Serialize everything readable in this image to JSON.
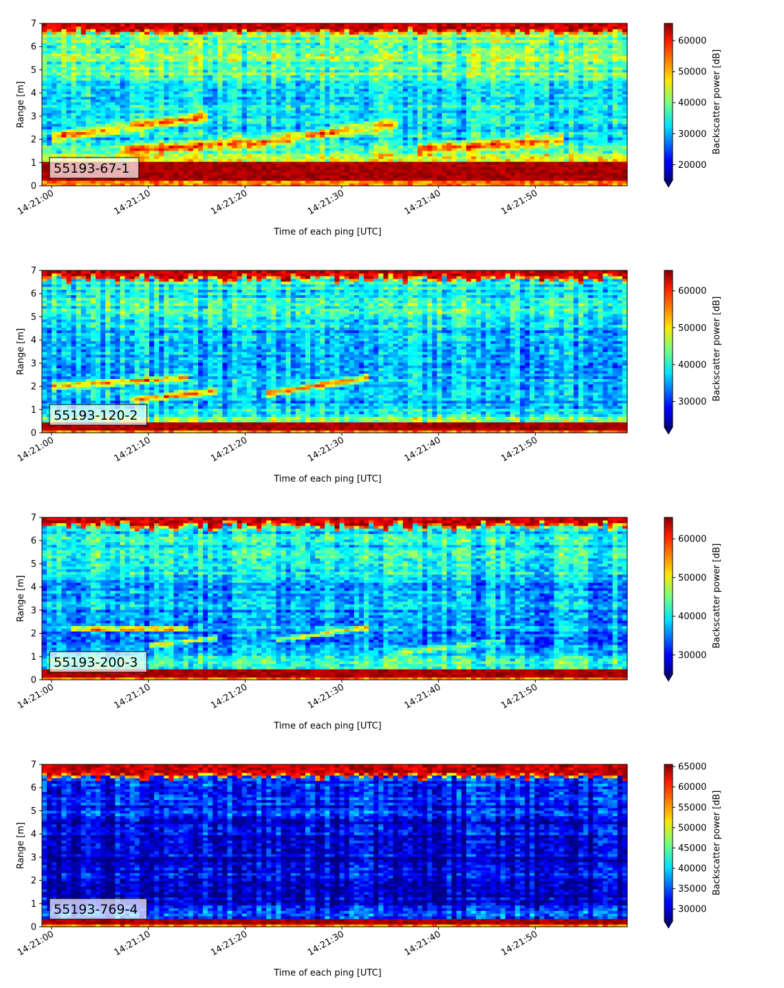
{
  "chart_data": [
    {
      "type": "heatmap",
      "label": "55193-67-1",
      "xlabel": "Time of each ping [UTC]",
      "ylabel": "Range [m]",
      "x_tick_labels": [
        "14:21:00",
        "14:21:10",
        "14:21:20",
        "14:21:30",
        "14:21:40",
        "14:21:50"
      ],
      "x_range_seconds": [
        -1,
        59.5
      ],
      "ylim": [
        0,
        7
      ],
      "y_ticks": [
        0,
        1,
        2,
        3,
        4,
        5,
        6,
        7
      ],
      "colorbar": {
        "label": "Backscatter power [dB]",
        "ticks": [
          20000,
          30000,
          40000,
          50000,
          60000
        ],
        "range": [
          15000,
          65535
        ],
        "cmap": "jet",
        "extend": "min"
      },
      "features": {
        "surface_top": 6.6,
        "surface_var": 0.12,
        "bottom_band": [
          0.2,
          1.1
        ],
        "background": 0.35,
        "upper_noise": 0.15,
        "tracks": [
          {
            "t0": 0,
            "t1": 16,
            "r0": 2.1,
            "r1": 3.0,
            "intensity": 0.35,
            "width": 0.3
          },
          {
            "t0": 7,
            "t1": 20,
            "r0": 1.5,
            "r1": 1.9,
            "intensity": 0.35,
            "width": 0.3
          },
          {
            "t0": 20,
            "t1": 36,
            "r0": 1.8,
            "r1": 2.7,
            "intensity": 0.35,
            "width": 0.3
          },
          {
            "t0": 38,
            "t1": 53,
            "r0": 1.6,
            "r1": 2.0,
            "intensity": 0.35,
            "width": 0.3
          }
        ],
        "lower_glow": 0.3
      }
    },
    {
      "type": "heatmap",
      "label": "55193-120-2",
      "xlabel": "Time of each ping [UTC]",
      "ylabel": "Range [m]",
      "x_tick_labels": [
        "14:21:00",
        "14:21:10",
        "14:21:20",
        "14:21:30",
        "14:21:40",
        "14:21:50"
      ],
      "x_range_seconds": [
        -1,
        59.5
      ],
      "ylim": [
        0,
        7
      ],
      "y_ticks": [
        0,
        1,
        2,
        3,
        4,
        5,
        6,
        7
      ],
      "colorbar": {
        "label": "Backscatter power [dB]",
        "ticks": [
          30000,
          40000,
          50000,
          60000
        ],
        "range": [
          23000,
          65535
        ],
        "cmap": "jet",
        "extend": "min"
      },
      "features": {
        "surface_top": 6.6,
        "surface_var": 0.15,
        "bottom_band": [
          0.1,
          0.5
        ],
        "background": 0.3,
        "upper_noise": 0.12,
        "tracks": [
          {
            "t0": 0,
            "t1": 14,
            "r0": 2.0,
            "r1": 2.4,
            "intensity": 0.35,
            "width": 0.2
          },
          {
            "t0": 8,
            "t1": 17,
            "r0": 1.4,
            "r1": 1.8,
            "intensity": 0.4,
            "width": 0.2
          },
          {
            "t0": 22,
            "t1": 33,
            "r0": 1.7,
            "r1": 2.4,
            "intensity": 0.4,
            "width": 0.2
          }
        ],
        "lower_glow": 0.25
      }
    },
    {
      "type": "heatmap",
      "label": "55193-200-3",
      "xlabel": "Time of each ping [UTC]",
      "ylabel": "Range [m]",
      "x_tick_labels": [
        "14:21:00",
        "14:21:10",
        "14:21:20",
        "14:21:30",
        "14:21:40",
        "14:21:50"
      ],
      "x_range_seconds": [
        -1,
        59.5
      ],
      "ylim": [
        0,
        7
      ],
      "y_ticks": [
        0,
        1,
        2,
        3,
        4,
        5,
        6,
        7
      ],
      "colorbar": {
        "label": "Backscatter power [dB]",
        "ticks": [
          30000,
          40000,
          50000,
          60000
        ],
        "range": [
          25000,
          65535
        ],
        "cmap": "jet",
        "extend": "min"
      },
      "features": {
        "surface_top": 6.6,
        "surface_var": 0.15,
        "bottom_band": [
          0.1,
          0.45
        ],
        "background": 0.28,
        "upper_noise": 0.12,
        "tracks": [
          {
            "t0": 2,
            "t1": 14,
            "r0": 2.2,
            "r1": 2.2,
            "intensity": 0.45,
            "width": 0.15
          },
          {
            "t0": 10,
            "t1": 17,
            "r0": 1.5,
            "r1": 1.8,
            "intensity": 0.35,
            "width": 0.15
          },
          {
            "t0": 23,
            "t1": 33,
            "r0": 1.7,
            "r1": 2.3,
            "intensity": 0.35,
            "width": 0.15
          },
          {
            "t0": 36,
            "t1": 47,
            "r0": 1.2,
            "r1": 1.7,
            "intensity": 0.2,
            "width": 0.15
          }
        ],
        "lower_glow": 0.25
      }
    },
    {
      "type": "heatmap",
      "label": "55193-769-4",
      "xlabel": "Time of each ping [UTC]",
      "ylabel": "Range [m]",
      "x_tick_labels": [
        "14:21:00",
        "14:21:10",
        "14:21:20",
        "14:21:30",
        "14:21:40",
        "14:21:50"
      ],
      "x_range_seconds": [
        -1,
        59.5
      ],
      "ylim": [
        0,
        7
      ],
      "y_ticks": [
        0,
        1,
        2,
        3,
        4,
        5,
        6,
        7
      ],
      "colorbar": {
        "label": "Backscatter power [dB]",
        "ticks": [
          30000,
          35000,
          40000,
          45000,
          50000,
          55000,
          60000,
          65000
        ],
        "range": [
          27000,
          65535
        ],
        "cmap": "jet",
        "extend": "min"
      },
      "features": {
        "surface_top": 6.45,
        "surface_var": 0.12,
        "bottom_band": [
          0.15,
          0.3
        ],
        "background": 0.08,
        "upper_noise": 0.08,
        "tracks": [],
        "lower_glow": 0.18
      }
    }
  ]
}
